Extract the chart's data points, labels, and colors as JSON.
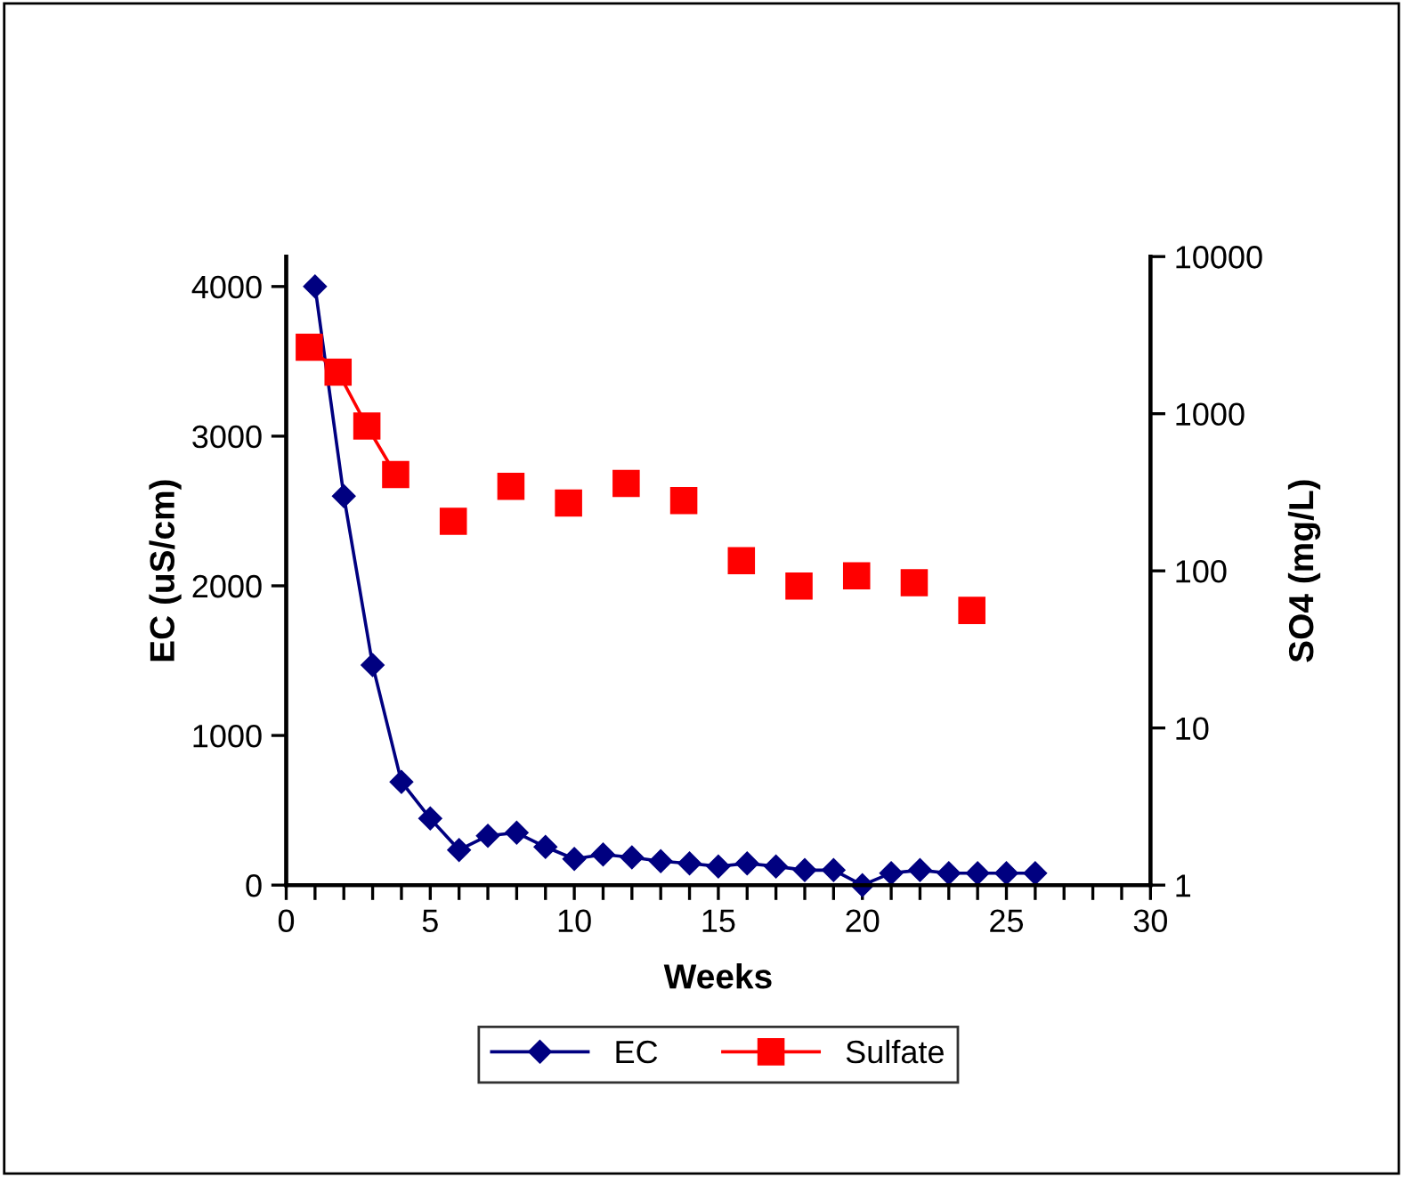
{
  "chart_data": {
    "type": "line",
    "xlabel": "Weeks",
    "ylabel": "EC (uS/cm)",
    "y2label": "SO4 (mg/L)",
    "xlim": [
      0,
      30
    ],
    "xticks": [
      0,
      {
        "value": 1,
        "label": null
      },
      {
        "value": 2,
        "label": null
      },
      {
        "value": 3,
        "label": null
      },
      {
        "value": 4,
        "label": null
      },
      5,
      {
        "value": 6,
        "label": null
      },
      {
        "value": 7,
        "label": null
      },
      {
        "value": 8,
        "label": null
      },
      {
        "value": 9,
        "label": null
      },
      10,
      {
        "value": 11,
        "label": null
      },
      {
        "value": 12,
        "label": null
      },
      {
        "value": 13,
        "label": null
      },
      {
        "value": 14,
        "label": null
      },
      15,
      {
        "value": 16,
        "label": null
      },
      {
        "value": 17,
        "label": null
      },
      {
        "value": 18,
        "label": null
      },
      {
        "value": 19,
        "label": null
      },
      20,
      {
        "value": 21,
        "label": null
      },
      {
        "value": 22,
        "label": null
      },
      {
        "value": 23,
        "label": null
      },
      {
        "value": 24,
        "label": null
      },
      25,
      {
        "value": 26,
        "label": null
      },
      {
        "value": 27,
        "label": null
      },
      {
        "value": 28,
        "label": null
      },
      {
        "value": 29,
        "label": null
      },
      30
    ],
    "ylim": [
      0,
      4200
    ],
    "yticks": [
      0,
      1000,
      2000,
      3000,
      4000
    ],
    "y2lim": [
      1,
      10000
    ],
    "y2ticks": [
      1,
      10,
      100,
      1000,
      10000
    ],
    "log": "y2",
    "grid": false,
    "legend": "bottom",
    "line_style": "solid",
    "series": [
      {
        "name": "EC",
        "color": "#000080",
        "marker": "diamond",
        "x": [
          1,
          2,
          3,
          4,
          5,
          6,
          7,
          8,
          9,
          10,
          11,
          12,
          13,
          14,
          15,
          16,
          17,
          18,
          19,
          20,
          21,
          22,
          23,
          24,
          25,
          26
        ],
        "values": [
          4000,
          2600,
          1470,
          690,
          445,
          235,
          330,
          350,
          255,
          175,
          205,
          185,
          160,
          145,
          125,
          145,
          125,
          100,
          100,
          0,
          80,
          100,
          80,
          80,
          80,
          80
        ]
      },
      {
        "name": "Sulfate",
        "color": "#ff0000",
        "marker": "square",
        "axis": "y2",
        "x": [
          0.8,
          1.8,
          2.8,
          3.8
        ],
        "values": [
          2650,
          1840,
          835,
          410
        ]
      },
      {
        "type": "scatter",
        "color": "#ff0000",
        "marker": "square",
        "axis": "y2",
        "x": [
          5.8,
          7.8,
          9.8,
          11.8,
          13.8,
          15.8,
          17.8,
          19.8,
          21.8,
          23.8
        ],
        "values": [
          207,
          345,
          270,
          360,
          280,
          116,
          80,
          93,
          84,
          56
        ]
      }
    ]
  }
}
